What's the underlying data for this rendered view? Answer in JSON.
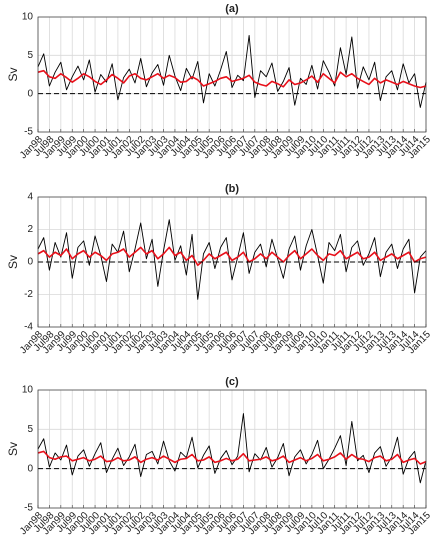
{
  "chart_data": [
    {
      "type": "line",
      "title": "(a)",
      "y_label": "Sv",
      "grid": true,
      "reference_line": 0,
      "xlim": [
        1998,
        2015
      ],
      "ylim": [
        -5,
        10
      ],
      "yticks": [
        -5,
        0,
        5,
        10
      ],
      "xticks": [
        {
          "value": 1998,
          "label": "Jan98"
        },
        {
          "value": 1998.5,
          "label": "Jul98"
        },
        {
          "value": 1999,
          "label": "Jan99"
        },
        {
          "value": 1999.5,
          "label": "Jul99"
        },
        {
          "value": 2000,
          "label": "Jan00"
        },
        {
          "value": 2000.5,
          "label": "Jul00"
        },
        {
          "value": 2001,
          "label": "Jan01"
        },
        {
          "value": 2001.5,
          "label": "Jul01"
        },
        {
          "value": 2002,
          "label": "Jan02"
        },
        {
          "value": 2002.5,
          "label": "Jul02"
        },
        {
          "value": 2003,
          "label": "Jan03"
        },
        {
          "value": 2003.5,
          "label": "Jul03"
        },
        {
          "value": 2004,
          "label": "Jan04"
        },
        {
          "value": 2004.5,
          "label": "Jul04"
        },
        {
          "value": 2005,
          "label": "Jan05"
        },
        {
          "value": 2005.5,
          "label": "Jul05"
        },
        {
          "value": 2006,
          "label": "Jan06"
        },
        {
          "value": 2006.5,
          "label": "Jul06"
        },
        {
          "value": 2007,
          "label": "Jan07"
        },
        {
          "value": 2007.5,
          "label": "Jul07"
        },
        {
          "value": 2008,
          "label": "Jan08"
        },
        {
          "value": 2008.5,
          "label": "Jul08"
        },
        {
          "value": 2009,
          "label": "Jan09"
        },
        {
          "value": 2009.5,
          "label": "Jul09"
        },
        {
          "value": 2010,
          "label": "Jan10"
        },
        {
          "value": 2010.5,
          "label": "Jul10"
        },
        {
          "value": 2011,
          "label": "Jan11"
        },
        {
          "value": 2011.5,
          "label": "Jul11"
        },
        {
          "value": 2012,
          "label": "Jan12"
        },
        {
          "value": 2012.5,
          "label": "Jul12"
        },
        {
          "value": 2013,
          "label": "Jan13"
        },
        {
          "value": 2013.5,
          "label": "Jul13"
        },
        {
          "value": 2014,
          "label": "Jan14"
        },
        {
          "value": 2014.5,
          "label": "Jul14"
        },
        {
          "value": 2015,
          "label": "Jan15"
        }
      ],
      "x": [
        1998,
        1998.25,
        1998.5,
        1998.75,
        1999,
        1999.25,
        1999.5,
        1999.75,
        2000,
        2000.25,
        2000.5,
        2000.75,
        2001,
        2001.25,
        2001.5,
        2001.75,
        2002,
        2002.25,
        2002.5,
        2002.75,
        2003,
        2003.25,
        2003.5,
        2003.75,
        2004,
        2004.25,
        2004.5,
        2004.75,
        2005,
        2005.25,
        2005.5,
        2005.75,
        2006,
        2006.25,
        2006.5,
        2006.75,
        2007,
        2007.25,
        2007.5,
        2007.75,
        2008,
        2008.25,
        2008.5,
        2008.75,
        2009,
        2009.25,
        2009.5,
        2009.75,
        2010,
        2010.25,
        2010.5,
        2010.75,
        2011,
        2011.25,
        2011.5,
        2011.75,
        2012,
        2012.25,
        2012.5,
        2012.75,
        2013,
        2013.25,
        2013.5,
        2013.75,
        2014,
        2014.25,
        2014.5,
        2014.75,
        2015
      ],
      "series": [
        {
          "color": "#000000",
          "values": [
            3.5,
            5.2,
            1.0,
            2.8,
            4.1,
            0.5,
            2.2,
            3.6,
            1.8,
            4.4,
            0.2,
            2.5,
            1.5,
            3.9,
            -0.8,
            2.1,
            3.2,
            1.4,
            4.6,
            0.9,
            2.7,
            3.8,
            1.1,
            5.0,
            2.3,
            0.4,
            3.3,
            1.9,
            4.2,
            -1.2,
            2.6,
            1.0,
            3.1,
            5.5,
            0.8,
            2.4,
            1.7,
            7.6,
            -0.5,
            3.0,
            2.2,
            4.0,
            0.3,
            1.6,
            3.4,
            -1.5,
            2.0,
            1.2,
            3.7,
            0.6,
            4.3,
            2.8,
            1.0,
            6.0,
            2.5,
            7.4,
            0.7,
            3.5,
            1.8,
            4.1,
            -0.9,
            2.2,
            3.0,
            0.5,
            3.9,
            1.4,
            2.6,
            -1.8,
            1.5
          ]
        },
        {
          "color": "#e8101a",
          "values": [
            2.8,
            3.0,
            2.2,
            2.0,
            2.6,
            2.1,
            1.5,
            2.0,
            2.6,
            2.2,
            1.6,
            1.2,
            1.8,
            2.5,
            2.0,
            1.4,
            2.3,
            2.6,
            2.0,
            1.8,
            2.2,
            2.6,
            2.0,
            2.4,
            2.1,
            1.5,
            1.6,
            2.2,
            1.8,
            1.0,
            1.3,
            1.6,
            2.0,
            2.2,
            1.6,
            1.8,
            2.0,
            2.4,
            1.5,
            1.2,
            1.0,
            1.6,
            1.3,
            0.9,
            1.8,
            1.2,
            1.4,
            1.8,
            2.3,
            1.5,
            2.6,
            2.0,
            1.4,
            2.8,
            2.2,
            2.6,
            2.0,
            1.6,
            1.2,
            2.0,
            1.4,
            1.8,
            1.5,
            1.2,
            1.6,
            1.3,
            1.0,
            0.8,
            1.0
          ]
        }
      ]
    },
    {
      "type": "line",
      "title": "(b)",
      "y_label": "Sv",
      "grid": true,
      "reference_line": 0,
      "xlim": [
        1998,
        2015
      ],
      "ylim": [
        -4,
        4
      ],
      "yticks": [
        -4,
        -2,
        0,
        2,
        4
      ],
      "xticks": [
        {
          "value": 1998,
          "label": "Jan98"
        },
        {
          "value": 1998.5,
          "label": "Jul98"
        },
        {
          "value": 1999,
          "label": "Jan99"
        },
        {
          "value": 1999.5,
          "label": "Jul99"
        },
        {
          "value": 2000,
          "label": "Jan00"
        },
        {
          "value": 2000.5,
          "label": "Jul00"
        },
        {
          "value": 2001,
          "label": "Jan01"
        },
        {
          "value": 2001.5,
          "label": "Jul01"
        },
        {
          "value": 2002,
          "label": "Jan02"
        },
        {
          "value": 2002.5,
          "label": "Jul02"
        },
        {
          "value": 2003,
          "label": "Jan03"
        },
        {
          "value": 2003.5,
          "label": "Jul03"
        },
        {
          "value": 2004,
          "label": "Jan04"
        },
        {
          "value": 2004.5,
          "label": "Jul04"
        },
        {
          "value": 2005,
          "label": "Jan05"
        },
        {
          "value": 2005.5,
          "label": "Jul05"
        },
        {
          "value": 2006,
          "label": "Jan06"
        },
        {
          "value": 2006.5,
          "label": "Jul06"
        },
        {
          "value": 2007,
          "label": "Jan07"
        },
        {
          "value": 2007.5,
          "label": "Jul07"
        },
        {
          "value": 2008,
          "label": "Jan08"
        },
        {
          "value": 2008.5,
          "label": "Jul08"
        },
        {
          "value": 2009,
          "label": "Jan09"
        },
        {
          "value": 2009.5,
          "label": "Jul09"
        },
        {
          "value": 2010,
          "label": "Jan10"
        },
        {
          "value": 2010.5,
          "label": "Jul10"
        },
        {
          "value": 2011,
          "label": "Jan11"
        },
        {
          "value": 2011.5,
          "label": "Jul11"
        },
        {
          "value": 2012,
          "label": "Jan12"
        },
        {
          "value": 2012.5,
          "label": "Jul12"
        },
        {
          "value": 2013,
          "label": "Jan13"
        },
        {
          "value": 2013.5,
          "label": "Jul13"
        },
        {
          "value": 2014,
          "label": "Jan14"
        },
        {
          "value": 2014.5,
          "label": "Jul14"
        },
        {
          "value": 2015,
          "label": "Jan15"
        }
      ],
      "x": [
        1998,
        1998.25,
        1998.5,
        1998.75,
        1999,
        1999.25,
        1999.5,
        1999.75,
        2000,
        2000.25,
        2000.5,
        2000.75,
        2001,
        2001.25,
        2001.5,
        2001.75,
        2002,
        2002.25,
        2002.5,
        2002.75,
        2003,
        2003.25,
        2003.5,
        2003.75,
        2004,
        2004.25,
        2004.5,
        2004.75,
        2005,
        2005.25,
        2005.5,
        2005.75,
        2006,
        2006.25,
        2006.5,
        2006.75,
        2007,
        2007.25,
        2007.5,
        2007.75,
        2008,
        2008.25,
        2008.5,
        2008.75,
        2009,
        2009.25,
        2009.5,
        2009.75,
        2010,
        2010.25,
        2010.5,
        2010.75,
        2011,
        2011.25,
        2011.5,
        2011.75,
        2012,
        2012.25,
        2012.5,
        2012.75,
        2013,
        2013.25,
        2013.5,
        2013.75,
        2014,
        2014.25,
        2014.5,
        2014.75,
        2015
      ],
      "series": [
        {
          "color": "#000000",
          "values": [
            0.8,
            1.5,
            -0.5,
            1.2,
            0.3,
            1.8,
            -1.0,
            0.9,
            1.3,
            -0.2,
            1.6,
            0.4,
            -1.2,
            1.1,
            0.6,
            1.9,
            -0.6,
            0.8,
            2.4,
            0.2,
            1.4,
            -1.5,
            0.7,
            2.6,
            0.1,
            1.0,
            -0.8,
            1.7,
            -2.3,
            0.5,
            1.2,
            -0.4,
            0.9,
            1.5,
            -1.1,
            0.3,
            1.8,
            -0.7,
            0.6,
            1.1,
            -0.3,
            1.4,
            0.2,
            -1.0,
            0.8,
            1.6,
            -0.5,
            1.0,
            2.0,
            0.4,
            -1.3,
            1.2,
            0.7,
            1.7,
            -0.6,
            0.9,
            1.3,
            -0.2,
            0.5,
            1.5,
            -0.9,
            0.6,
            1.1,
            -0.4,
            0.8,
            1.4,
            -1.9,
            0.3,
            0.7
          ]
        },
        {
          "color": "#e8101a",
          "values": [
            0.5,
            0.7,
            0.3,
            0.6,
            0.4,
            0.8,
            0.2,
            0.5,
            0.7,
            0.3,
            0.6,
            0.4,
            0.1,
            0.5,
            0.6,
            0.8,
            0.3,
            0.6,
            0.9,
            0.5,
            0.7,
            0.2,
            0.5,
            0.9,
            0.4,
            0.6,
            0.1,
            0.4,
            -0.2,
            0.1,
            0.5,
            0.2,
            0.4,
            0.6,
            0.1,
            0.3,
            0.6,
            0.0,
            0.2,
            0.5,
            0.2,
            0.6,
            0.3,
            0.0,
            0.4,
            0.7,
            0.2,
            0.5,
            0.8,
            0.4,
            0.1,
            0.5,
            0.4,
            0.7,
            0.2,
            0.4,
            0.6,
            0.2,
            0.3,
            0.6,
            0.1,
            0.3,
            0.5,
            0.2,
            0.4,
            0.6,
            0.0,
            0.2,
            0.3
          ]
        }
      ]
    },
    {
      "type": "line",
      "title": "(c)",
      "y_label": "Sv",
      "grid": true,
      "reference_line": 0,
      "xlim": [
        1998,
        2015
      ],
      "ylim": [
        -5,
        10
      ],
      "yticks": [
        -5,
        0,
        5,
        10
      ],
      "xticks": [
        {
          "value": 1998,
          "label": "Jan98"
        },
        {
          "value": 1998.5,
          "label": "Jul98"
        },
        {
          "value": 1999,
          "label": "Jan99"
        },
        {
          "value": 1999.5,
          "label": "Jul99"
        },
        {
          "value": 2000,
          "label": "Jan00"
        },
        {
          "value": 2000.5,
          "label": "Jul00"
        },
        {
          "value": 2001,
          "label": "Jan01"
        },
        {
          "value": 2001.5,
          "label": "Jul01"
        },
        {
          "value": 2002,
          "label": "Jan02"
        },
        {
          "value": 2002.5,
          "label": "Jul02"
        },
        {
          "value": 2003,
          "label": "Jan03"
        },
        {
          "value": 2003.5,
          "label": "Jul03"
        },
        {
          "value": 2004,
          "label": "Jan04"
        },
        {
          "value": 2004.5,
          "label": "Jul04"
        },
        {
          "value": 2005,
          "label": "Jan05"
        },
        {
          "value": 2005.5,
          "label": "Jul05"
        },
        {
          "value": 2006,
          "label": "Jan06"
        },
        {
          "value": 2006.5,
          "label": "Jul06"
        },
        {
          "value": 2007,
          "label": "Jan07"
        },
        {
          "value": 2007.5,
          "label": "Jul07"
        },
        {
          "value": 2008,
          "label": "Jan08"
        },
        {
          "value": 2008.5,
          "label": "Jul08"
        },
        {
          "value": 2009,
          "label": "Jan09"
        },
        {
          "value": 2009.5,
          "label": "Jul09"
        },
        {
          "value": 2010,
          "label": "Jan10"
        },
        {
          "value": 2010.5,
          "label": "Jul10"
        },
        {
          "value": 2011,
          "label": "Jan11"
        },
        {
          "value": 2011.5,
          "label": "Jul11"
        },
        {
          "value": 2012,
          "label": "Jan12"
        },
        {
          "value": 2012.5,
          "label": "Jul12"
        },
        {
          "value": 2013,
          "label": "Jan13"
        },
        {
          "value": 2013.5,
          "label": "Jul13"
        },
        {
          "value": 2014,
          "label": "Jan14"
        },
        {
          "value": 2014.5,
          "label": "Jul14"
        },
        {
          "value": 2015,
          "label": "Jan15"
        }
      ],
      "x": [
        1998,
        1998.25,
        1998.5,
        1998.75,
        1999,
        1999.25,
        1999.5,
        1999.75,
        2000,
        2000.25,
        2000.5,
        2000.75,
        2001,
        2001.25,
        2001.5,
        2001.75,
        2002,
        2002.25,
        2002.5,
        2002.75,
        2003,
        2003.25,
        2003.5,
        2003.75,
        2004,
        2004.25,
        2004.5,
        2004.75,
        2005,
        2005.25,
        2005.5,
        2005.75,
        2006,
        2006.25,
        2006.5,
        2006.75,
        2007,
        2007.25,
        2007.5,
        2007.75,
        2008,
        2008.25,
        2008.5,
        2008.75,
        2009,
        2009.25,
        2009.5,
        2009.75,
        2010,
        2010.25,
        2010.5,
        2010.75,
        2011,
        2011.25,
        2011.5,
        2011.75,
        2012,
        2012.25,
        2012.5,
        2012.75,
        2013,
        2013.25,
        2013.5,
        2013.75,
        2014,
        2014.25,
        2014.5,
        2014.75,
        2015
      ],
      "series": [
        {
          "color": "#000000",
          "values": [
            2.5,
            3.8,
            0.2,
            2.0,
            1.1,
            3.0,
            -0.8,
            1.6,
            2.4,
            0.3,
            1.9,
            3.3,
            -0.5,
            1.2,
            2.6,
            0.4,
            1.5,
            3.1,
            -1.0,
            1.8,
            2.2,
            0.6,
            3.5,
            1.0,
            -0.3,
            2.1,
            1.4,
            4.0,
            0.1,
            1.7,
            2.9,
            -0.6,
            1.3,
            2.3,
            0.5,
            1.6,
            7.0,
            -0.4,
            1.9,
            1.1,
            2.7,
            0.2,
            1.4,
            3.2,
            -0.9,
            1.5,
            2.4,
            0.6,
            1.8,
            3.6,
            0.0,
            1.2,
            2.6,
            4.2,
            0.4,
            6.0,
            1.0,
            1.7,
            -0.5,
            2.0,
            2.8,
            0.3,
            1.5,
            4.0,
            -0.7,
            1.3,
            2.2,
            -1.8,
            1.0
          ]
        },
        {
          "color": "#e8101a",
          "values": [
            2.0,
            2.2,
            1.4,
            1.2,
            1.5,
            1.6,
            1.0,
            1.2,
            1.4,
            1.0,
            1.2,
            1.6,
            0.9,
            1.0,
            1.4,
            1.0,
            1.1,
            1.5,
            0.8,
            1.2,
            1.4,
            1.1,
            1.6,
            1.2,
            0.8,
            1.2,
            1.3,
            1.8,
            1.0,
            1.1,
            1.5,
            0.8,
            1.0,
            1.3,
            1.0,
            1.2,
            1.9,
            1.0,
            1.1,
            1.2,
            1.5,
            1.0,
            1.2,
            1.6,
            0.8,
            1.1,
            1.4,
            1.0,
            1.3,
            1.8,
            1.0,
            1.2,
            1.5,
            2.0,
            1.2,
            1.8,
            1.3,
            1.2,
            0.9,
            1.4,
            1.6,
            1.0,
            1.2,
            1.8,
            0.8,
            1.1,
            1.3,
            0.6,
            0.9
          ]
        }
      ]
    }
  ]
}
